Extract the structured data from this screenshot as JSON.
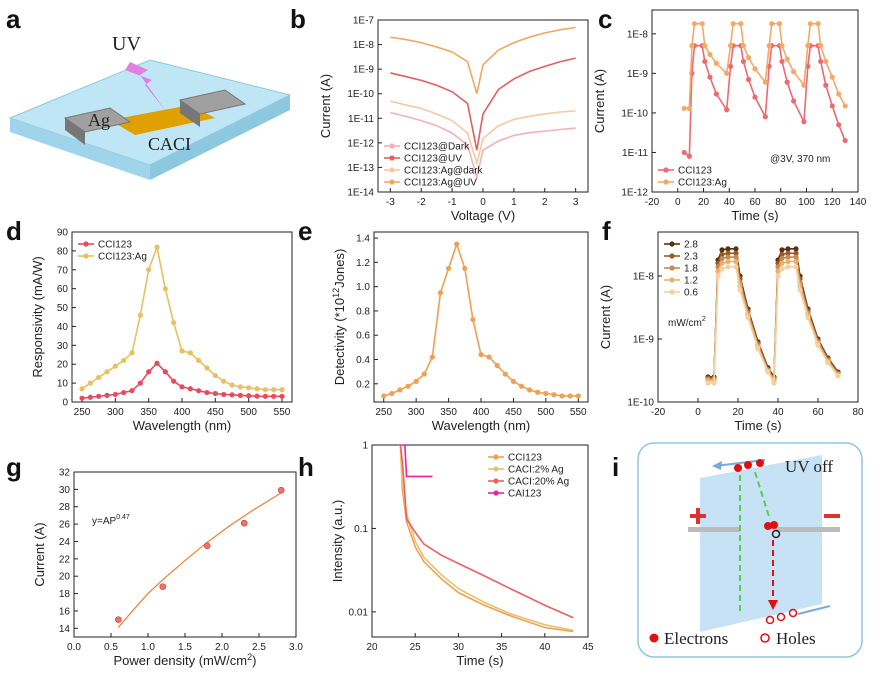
{
  "diagram_a": {
    "panel": "a",
    "uv": "UV",
    "electrode": "Ag",
    "layer": "CACI"
  },
  "diagram_i": {
    "panel": "i",
    "state": "UV off",
    "electrons": "Electrons",
    "holes": "Holes"
  },
  "chart_data": [
    {
      "panel": "b",
      "type": "line",
      "xlabel": "Voltage (V)",
      "ylabel": "Current (A)",
      "log_y": true,
      "legend": "lower left",
      "xlim": [
        -3.4,
        3.4
      ],
      "xticks": [
        -3,
        -2,
        -1,
        0,
        1,
        2,
        3
      ],
      "ylim": [
        1e-14,
        1e-07
      ],
      "yticks": [
        {
          "value": 1e-14,
          "label": "1E-14"
        },
        {
          "value": 1e-13,
          "label": "1E-13"
        },
        {
          "value": 1e-12,
          "label": "1E-12"
        },
        {
          "value": 1e-11,
          "label": "1E-11"
        },
        {
          "value": 1e-10,
          "label": "1E-10"
        },
        {
          "value": 1e-09,
          "label": "1E-9"
        },
        {
          "value": 1e-08,
          "label": "1E-8"
        },
        {
          "value": 1e-07,
          "label": "1E-7"
        }
      ],
      "x": [
        -3,
        -2.5,
        -2,
        -1.5,
        -1,
        -0.5,
        -0.2,
        0,
        0.5,
        1,
        1.5,
        2,
        2.5,
        3
      ],
      "series": [
        {
          "name": "CCI123@Dark",
          "color": "#f4b0b8",
          "values": [
            1.7e-11,
            1.2e-11,
            8e-12,
            5e-12,
            2.5e-12,
            8e-13,
            4e-14,
            5e-13,
            1.2e-12,
            2e-12,
            2.6e-12,
            3e-12,
            3.5e-12,
            4e-12
          ]
        },
        {
          "name": "CCI123@UV",
          "color": "#e06060",
          "values": [
            7e-10,
            5e-10,
            3.5e-10,
            2.2e-10,
            1.2e-10,
            4e-11,
            5e-13,
            1.5e-11,
            1.5e-10,
            4e-10,
            8e-10,
            1.3e-09,
            2e-09,
            2.8e-09
          ]
        },
        {
          "name": "CCI123:Ag@dark",
          "color": "#f8c8a0",
          "values": [
            5e-11,
            3.5e-11,
            2.5e-11,
            1.5e-11,
            8e-12,
            2.5e-12,
            1.5e-13,
            1.5e-12,
            5e-12,
            9e-12,
            1.2e-11,
            1.5e-11,
            1.8e-11,
            2e-11
          ]
        },
        {
          "name": "CCI123:Ag@UV",
          "color": "#f0a860",
          "values": [
            2e-08,
            1.6e-08,
            1.2e-08,
            8e-09,
            5e-09,
            2e-09,
            1e-10,
            1.5e-09,
            6e-09,
            1.2e-08,
            2e-08,
            3e-08,
            4e-08,
            5e-08
          ]
        }
      ]
    },
    {
      "panel": "c",
      "type": "line",
      "xlabel": "Time  (s)",
      "ylabel": "Current (A)",
      "log_y": true,
      "legend": "lower left",
      "markers": true,
      "annotation": "@3V, 370 nm",
      "xlim": [
        -20,
        140
      ],
      "xticks": [
        -20,
        0,
        20,
        40,
        60,
        80,
        100,
        120,
        140
      ],
      "ylim": [
        1e-12,
        4e-08
      ],
      "yticks": [
        {
          "value": 1e-12,
          "label": "1E-12"
        },
        {
          "value": 1e-11,
          "label": "1E-11"
        },
        {
          "value": 1e-10,
          "label": "1E-10"
        },
        {
          "value": 1e-09,
          "label": "1E-9"
        },
        {
          "value": 1e-08,
          "label": "1E-8"
        }
      ],
      "x": [
        5,
        9,
        11,
        13,
        19,
        21,
        25,
        30,
        38,
        41,
        43,
        49,
        51,
        55,
        60,
        68,
        71,
        73,
        79,
        81,
        85,
        90,
        98,
        101,
        103,
        109,
        111,
        115,
        120,
        125,
        130
      ],
      "series": [
        {
          "name": "CCI123",
          "color": "#ec6a72",
          "values": [
            1e-11,
            8e-12,
            1e-09,
            5e-09,
            5e-09,
            2e-09,
            8e-10,
            3e-10,
            1.2e-10,
            1.5e-09,
            5e-09,
            5e-09,
            2e-09,
            7e-10,
            2.5e-10,
            8e-11,
            1.5e-09,
            5e-09,
            5e-09,
            2e-09,
            6e-10,
            2e-10,
            6e-11,
            1.5e-09,
            5e-09,
            5e-09,
            2e-09,
            5e-10,
            1.5e-10,
            5e-11,
            2e-11
          ]
        },
        {
          "name": "CCI123:Ag",
          "color": "#f3a968",
          "values": [
            1.3e-10,
            1.3e-10,
            5e-09,
            1.8e-08,
            1.8e-08,
            5e-09,
            3e-09,
            1.8e-09,
            1e-09,
            5e-09,
            1.8e-08,
            1.8e-08,
            5e-09,
            2.5e-09,
            1.3e-09,
            6e-10,
            5e-09,
            1.8e-08,
            1.8e-08,
            5e-09,
            2.3e-09,
            1.1e-09,
            5e-10,
            5e-09,
            1.8e-08,
            1.8e-08,
            5e-09,
            2e-09,
            8e-10,
            3e-10,
            1.5e-10
          ]
        }
      ]
    },
    {
      "panel": "d",
      "type": "line",
      "xlabel": "Wavelength (nm)",
      "ylabel": "Responsivity (mA/W)",
      "legend": "upper left",
      "markers": true,
      "xlim": [
        235,
        565
      ],
      "xticks": [
        250,
        300,
        350,
        400,
        450,
        500,
        550
      ],
      "ylim": [
        0,
        90
      ],
      "yticks": [
        0,
        10,
        20,
        30,
        40,
        50,
        60,
        70,
        80,
        90
      ],
      "x": [
        250,
        262.5,
        275,
        287.5,
        300,
        312.5,
        325,
        337.5,
        350,
        362.5,
        375,
        387.5,
        400,
        412.5,
        425,
        437.5,
        450,
        462.5,
        475,
        487.5,
        500,
        512.5,
        525,
        537.5,
        550
      ],
      "series": [
        {
          "name": "CCI123",
          "color": "#e84a5f",
          "values": [
            2,
            2.5,
            3,
            3.5,
            4,
            5,
            6,
            10,
            16,
            20.5,
            16,
            11,
            8,
            7,
            6,
            5,
            4.5,
            4,
            3.8,
            3.5,
            3.3,
            3.1,
            3,
            3,
            3
          ]
        },
        {
          "name": "CCI123:Ag",
          "color": "#e8c060",
          "values": [
            7,
            10,
            13,
            16,
            19,
            22,
            26,
            46,
            70,
            82,
            60,
            42,
            27,
            26,
            22,
            18,
            14,
            11,
            9,
            8,
            7.5,
            7,
            6.5,
            6.5,
            6.5
          ]
        }
      ]
    },
    {
      "panel": "e",
      "type": "line",
      "xlabel": "Wavelength (nm)",
      "ylabel": [
        "Detectivity (*10",
        "12",
        "Jones)"
      ],
      "markers": true,
      "xlim": [
        235,
        565
      ],
      "xticks": [
        250,
        300,
        350,
        400,
        450,
        500,
        550
      ],
      "ylim": [
        0.05,
        1.45
      ],
      "yticks": [
        0.2,
        0.4,
        0.6,
        0.8,
        {
          "value": 1,
          "label": "1.0"
        },
        1.2,
        1.4
      ],
      "x": [
        250,
        262.5,
        275,
        287.5,
        300,
        312.5,
        325,
        337.5,
        350,
        362.5,
        375,
        387.5,
        400,
        412.5,
        425,
        437.5,
        450,
        462.5,
        475,
        487.5,
        500,
        512.5,
        525,
        537.5,
        550
      ],
      "series": [
        {
          "color": "#f0a050",
          "values": [
            0.1,
            0.12,
            0.15,
            0.18,
            0.22,
            0.28,
            0.42,
            0.95,
            1.15,
            1.35,
            1.15,
            0.73,
            0.44,
            0.42,
            0.35,
            0.28,
            0.22,
            0.18,
            0.15,
            0.13,
            0.12,
            0.11,
            0.1,
            0.1,
            0.1
          ]
        }
      ]
    },
    {
      "panel": "f",
      "type": "line",
      "xlabel": "Time (s)",
      "ylabel": "Current (A)",
      "log_y": true,
      "legend": "upper left",
      "markers": true,
      "annotation": [
        "mW/cm",
        "2"
      ],
      "xlim": [
        -20,
        80
      ],
      "xticks": [
        -20,
        0,
        20,
        40,
        60,
        80
      ],
      "ylim": [
        1e-10,
        5e-08
      ],
      "yticks": [
        {
          "value": 1e-10,
          "label": "1E-10"
        },
        {
          "value": 1e-09,
          "label": "1E-9"
        },
        {
          "value": 1e-08,
          "label": "1E-8"
        }
      ],
      "x": [
        5,
        8,
        10,
        12,
        15,
        19,
        21,
        25,
        30,
        35,
        38,
        40,
        42,
        45,
        49,
        51,
        55,
        60,
        65,
        70
      ],
      "series": [
        {
          "name": "2.8",
          "color": "#5a3010",
          "values": [
            2.5e-10,
            2.5e-10,
            1.8e-08,
            2.6e-08,
            2.7e-08,
            2.7e-08,
            1e-08,
            3e-09,
            9e-10,
            3.5e-10,
            2.5e-10,
            1.8e-08,
            2.6e-08,
            2.7e-08,
            2.7e-08,
            1e-08,
            3e-09,
            1e-09,
            5e-10,
            3e-10
          ]
        },
        {
          "name": "2.3",
          "color": "#9a5a28",
          "values": [
            2.4e-10,
            2.4e-10,
            1.6e-08,
            2.2e-08,
            2.3e-08,
            2.3e-08,
            9e-09,
            2.8e-09,
            8.5e-10,
            3.3e-10,
            2.4e-10,
            1.6e-08,
            2.2e-08,
            2.3e-08,
            2.3e-08,
            9e-09,
            2.8e-09,
            9.5e-10,
            4.8e-10,
            2.9e-10
          ]
        },
        {
          "name": "1.8",
          "color": "#c88850",
          "values": [
            2.3e-10,
            2.3e-10,
            1.4e-08,
            1.9e-08,
            2e-08,
            2e-08,
            8e-09,
            2.6e-09,
            8e-10,
            3.2e-10,
            2.3e-10,
            1.4e-08,
            1.9e-08,
            2e-08,
            2e-08,
            8e-09,
            2.6e-09,
            9e-10,
            4.6e-10,
            2.8e-10
          ]
        },
        {
          "name": "1.2",
          "color": "#e8b070",
          "values": [
            2.2e-10,
            2.2e-10,
            1.2e-08,
            1.6e-08,
            1.7e-08,
            1.7e-08,
            7e-09,
            2.4e-09,
            7.5e-10,
            3.1e-10,
            2.2e-10,
            1.2e-08,
            1.6e-08,
            1.7e-08,
            1.7e-08,
            7e-09,
            2.4e-09,
            8.5e-10,
            4.4e-10,
            2.7e-10
          ]
        },
        {
          "name": "0.6",
          "color": "#f4d0a0",
          "values": [
            2e-10,
            2e-10,
            1e-08,
            1.3e-08,
            1.4e-08,
            1.4e-08,
            6e-09,
            2.2e-09,
            7e-10,
            3e-10,
            2e-10,
            1e-08,
            1.3e-08,
            1.4e-08,
            1.4e-08,
            6e-09,
            2.2e-09,
            8e-10,
            4.2e-10,
            2.6e-10
          ]
        }
      ]
    },
    {
      "panel": "g",
      "type": "scatter",
      "xlabel": [
        "Power density (mW/cm",
        "2",
        ")"
      ],
      "ylabel": "Current (A)",
      "annotation": [
        "y=AP",
        "0.47"
      ],
      "xlim": [
        0,
        3
      ],
      "xticks": [
        {
          "value": 0,
          "label": "0.0"
        },
        0.5,
        {
          "value": 1,
          "label": "1.0"
        },
        1.5,
        {
          "value": 2,
          "label": "2.0"
        },
        2.5,
        {
          "value": 3,
          "label": "3.0"
        }
      ],
      "ylim": [
        13,
        32
      ],
      "yticks": [
        14,
        16,
        18,
        20,
        22,
        24,
        26,
        28,
        30,
        32
      ],
      "x": [
        0.6,
        1.2,
        1.8,
        2.3,
        2.8
      ],
      "series": [
        {
          "color": "#f07070",
          "values": [
            15,
            18.8,
            23.5,
            26.1,
            29.9
          ]
        }
      ],
      "fit": {
        "color": "#f08030",
        "x": [
          0.6,
          0.8,
          1,
          1.2,
          1.5,
          1.8,
          2.1,
          2.4,
          2.8
        ],
        "values": [
          14.1,
          16.1,
          18,
          19.6,
          21.8,
          23.9,
          25.8,
          27.5,
          29.6
        ]
      }
    },
    {
      "panel": "h",
      "type": "line",
      "xlabel": "Time (s)",
      "ylabel": "Intensity (a.u.)",
      "log_y": true,
      "legend": "upper right",
      "xlim": [
        20,
        45
      ],
      "xticks": [
        20,
        25,
        30,
        35,
        40,
        45
      ],
      "ylim": [
        0.005,
        1
      ],
      "yticks": [
        0.01,
        0.1,
        1
      ],
      "series": [
        {
          "name": "CCI123",
          "color": "#f0a050",
          "x": [
            23.3,
            23.5,
            24,
            25,
            26,
            28,
            30,
            33,
            36,
            40,
            43.3
          ],
          "values": [
            1,
            0.3,
            0.12,
            0.06,
            0.04,
            0.025,
            0.017,
            0.012,
            0.009,
            0.0065,
            0.0058
          ]
        },
        {
          "name": "CACI:2% Ag",
          "color": "#e8c070",
          "x": [
            23.3,
            23.5,
            24,
            25,
            26,
            28,
            30,
            33,
            36,
            40,
            43.3
          ],
          "values": [
            1,
            0.35,
            0.15,
            0.07,
            0.045,
            0.028,
            0.019,
            0.013,
            0.0095,
            0.007,
            0.006
          ]
        },
        {
          "name": "CACI:20% Ag",
          "color": "#f06060",
          "x": [
            23.3,
            23.6,
            24,
            25,
            26,
            28,
            30,
            33,
            36,
            40,
            43.3
          ],
          "values": [
            1,
            0.5,
            0.13,
            0.09,
            0.065,
            0.048,
            0.038,
            0.027,
            0.019,
            0.012,
            0.0085
          ]
        },
        {
          "name": "CAI123",
          "color": "#f020a0",
          "x": [
            23.3,
            23.8,
            24,
            25,
            26,
            27
          ],
          "values": [
            1,
            1,
            0.42,
            0.42,
            0.42,
            0.42
          ]
        }
      ]
    }
  ]
}
